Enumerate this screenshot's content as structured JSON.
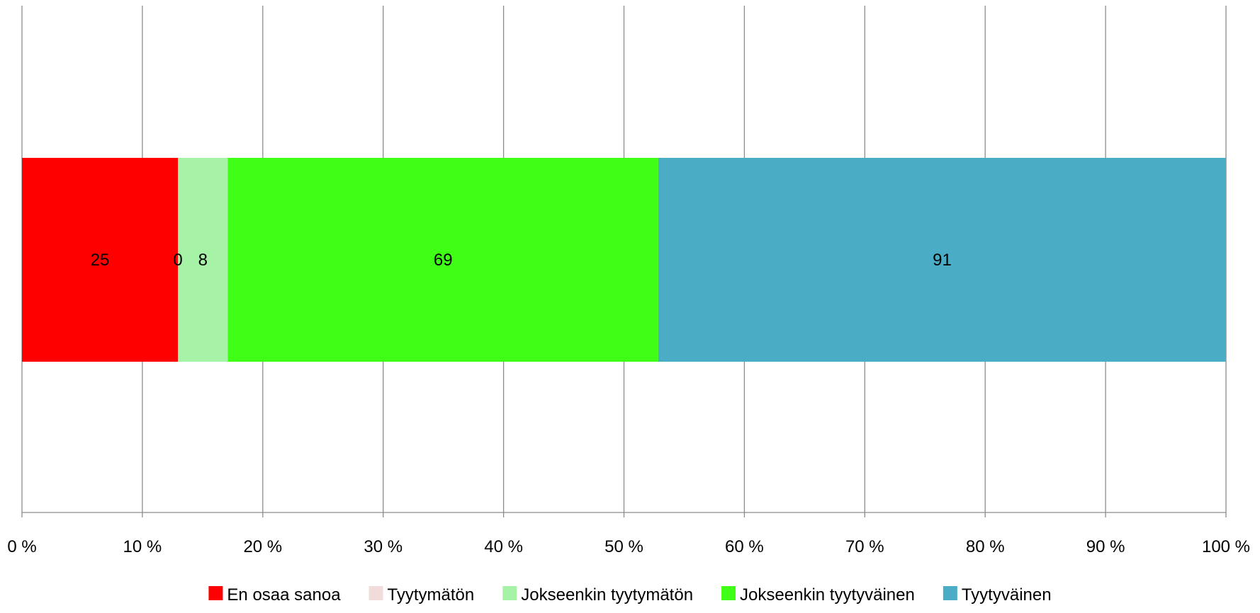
{
  "chart_data": {
    "type": "bar",
    "orientation": "horizontal",
    "stacking": "percent",
    "categories": [
      ""
    ],
    "series": [
      {
        "name": "En osaa sanoa",
        "values": [
          25
        ],
        "label": "25",
        "color": "#ff0000"
      },
      {
        "name": "Tyytymätön",
        "values": [
          0
        ],
        "label": "0",
        "color": "#f2dcdb"
      },
      {
        "name": "Jokseenkin tyytymätön",
        "values": [
          8
        ],
        "label": "8",
        "color": "#a6f2a6"
      },
      {
        "name": "Jokseenkin tyytyväinen",
        "values": [
          69
        ],
        "label": "69",
        "color": "#40ff16"
      },
      {
        "name": "Tyytyväinen",
        "values": [
          91
        ],
        "label": "91",
        "color": "#4aacc5"
      }
    ],
    "xlim": [
      0,
      100
    ],
    "xticks": [
      0,
      10,
      20,
      30,
      40,
      50,
      60,
      70,
      80,
      90,
      100
    ],
    "xtick_labels": [
      "0 %",
      "10 %",
      "20 %",
      "30 %",
      "40 %",
      "50 %",
      "60 %",
      "70 %",
      "80 %",
      "90 %",
      "100 %"
    ],
    "grid": true,
    "legend_position": "bottom",
    "title": "",
    "xlabel": "",
    "ylabel": ""
  }
}
